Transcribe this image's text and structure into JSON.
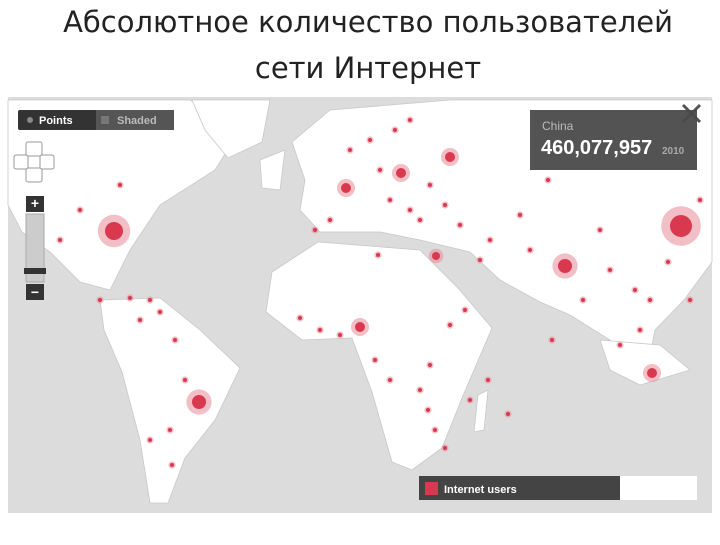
{
  "title": {
    "line1": "Абсолютное количество пользователей",
    "line2": "сети Интернет"
  },
  "controls": {
    "points": "Points",
    "shaded": "Shaded",
    "zoom_in": "+",
    "zoom_out": "−"
  },
  "tooltip": {
    "country": "China",
    "value": "460,077,957",
    "year": "2010"
  },
  "legend": {
    "label": "Internet users"
  }
}
